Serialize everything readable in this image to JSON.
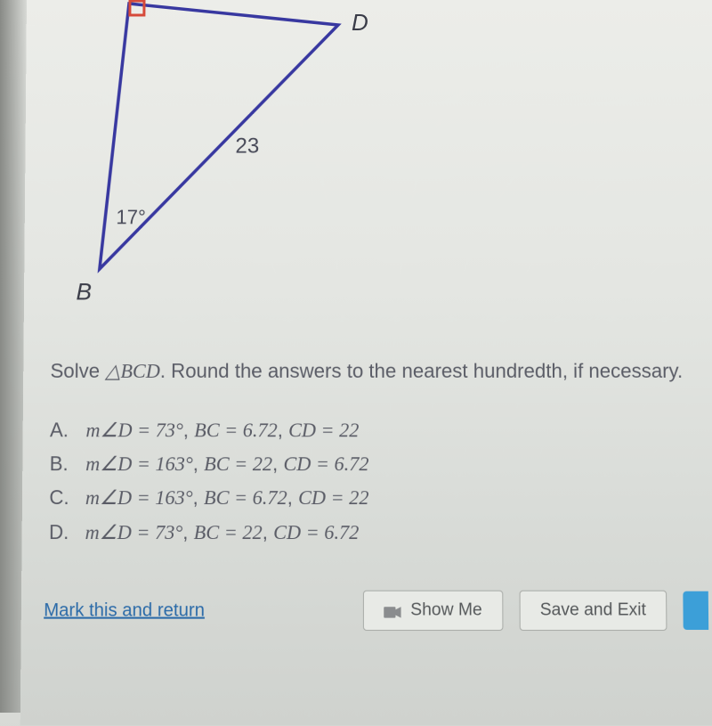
{
  "triangle": {
    "vertex_D": "D",
    "vertex_B": "B",
    "hypotenuse_label": "23",
    "angle_B_label": "17°",
    "stroke_color": "#3838a0",
    "stroke_width": 3.5,
    "right_angle_marker_color": "#d64a3a",
    "points": {
      "C": [
        75,
        4
      ],
      "D": [
        310,
        28
      ],
      "B": [
        44,
        300
      ]
    },
    "right_angle_marker_size": 16
  },
  "problem": {
    "prefix": "Solve ",
    "triangle_symbol": "△",
    "triangle_name": "BCD",
    "suffix": ". Round the answers to the nearest hundredth, if necessary."
  },
  "options": [
    {
      "letter": "A.",
      "angle": "m∠D = 73°",
      "bc": "BC = 6.72",
      "cd": "CD = 22"
    },
    {
      "letter": "B.",
      "angle": "m∠D = 163°",
      "bc": "BC = 22",
      "cd": "CD = 6.72"
    },
    {
      "letter": "C.",
      "angle": "m∠D = 163°",
      "bc": "BC = 6.72",
      "cd": "CD = 22"
    },
    {
      "letter": "D.",
      "angle": "m∠D = 73°",
      "bc": "BC = 22",
      "cd": "CD = 6.72"
    }
  ],
  "bottom": {
    "link_text": "Mark this and return",
    "show_me": "Show Me",
    "save_exit": "Save and Exit"
  },
  "colors": {
    "text": "#5a5c66",
    "link": "#2a6aa8",
    "button_bg": "#e8eae6",
    "button_border": "#a8aba7",
    "camera_icon": "#8a8c8e",
    "blue_accent": "#3c9fd8"
  }
}
